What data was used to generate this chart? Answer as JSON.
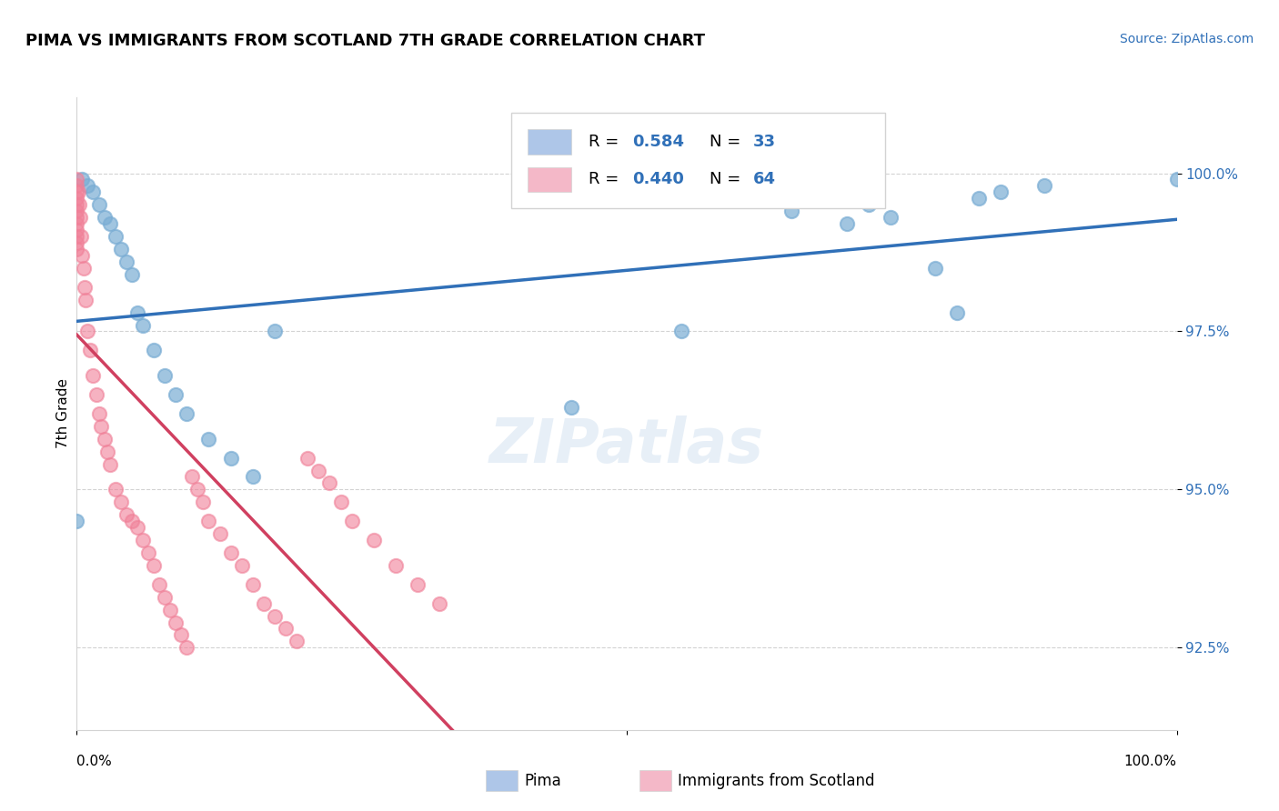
{
  "title": "PIMA VS IMMIGRANTS FROM SCOTLAND 7TH GRADE CORRELATION CHART",
  "source_text": "Source: ZipAtlas.com",
  "ylabel": "7th Grade",
  "y_ticks": [
    92.5,
    95.0,
    97.5,
    100.0
  ],
  "y_tick_labels": [
    "92.5%",
    "95.0%",
    "97.5%",
    "100.0%"
  ],
  "x_lim": [
    0.0,
    1.0
  ],
  "y_lim": [
    91.2,
    101.2
  ],
  "blue_color": "#7aadd4",
  "pink_color": "#f08098",
  "blue_line_color": "#3070b8",
  "pink_line_color": "#d04060",
  "legend_blue_fill": "#aec6e8",
  "legend_pink_fill": "#f4b8c8",
  "r_blue": "0.584",
  "n_blue": "33",
  "r_pink": "0.440",
  "n_pink": "64",
  "pima_x": [
    0.0,
    0.005,
    0.01,
    0.015,
    0.02,
    0.025,
    0.03,
    0.035,
    0.04,
    0.045,
    0.05,
    0.055,
    0.06,
    0.07,
    0.08,
    0.09,
    0.1,
    0.12,
    0.14,
    0.16,
    0.18,
    0.45,
    0.55,
    0.65,
    0.7,
    0.72,
    0.74,
    0.78,
    0.8,
    0.82,
    0.84,
    0.88,
    1.0
  ],
  "pima_y": [
    94.5,
    99.9,
    99.8,
    99.7,
    99.5,
    99.3,
    99.2,
    99.0,
    98.8,
    98.6,
    98.4,
    97.8,
    97.6,
    97.2,
    96.8,
    96.5,
    96.2,
    95.8,
    95.5,
    95.2,
    97.5,
    96.3,
    97.5,
    99.4,
    99.2,
    99.5,
    99.3,
    98.5,
    97.8,
    99.6,
    99.7,
    99.8,
    99.9
  ],
  "scot_x": [
    0.0,
    0.0,
    0.0,
    0.0,
    0.0,
    0.0,
    0.0,
    0.0,
    0.0,
    0.0,
    0.0,
    0.0,
    0.001,
    0.002,
    0.003,
    0.004,
    0.005,
    0.006,
    0.007,
    0.008,
    0.01,
    0.012,
    0.015,
    0.018,
    0.02,
    0.022,
    0.025,
    0.028,
    0.03,
    0.035,
    0.04,
    0.045,
    0.05,
    0.055,
    0.06,
    0.065,
    0.07,
    0.075,
    0.08,
    0.085,
    0.09,
    0.095,
    0.1,
    0.105,
    0.11,
    0.115,
    0.12,
    0.13,
    0.14,
    0.15,
    0.16,
    0.17,
    0.18,
    0.19,
    0.2,
    0.21,
    0.22,
    0.23,
    0.24,
    0.25,
    0.27,
    0.29,
    0.31,
    0.33
  ],
  "scot_y": [
    99.9,
    99.8,
    99.7,
    99.6,
    99.5,
    99.4,
    99.3,
    99.2,
    99.1,
    99.0,
    98.9,
    98.8,
    99.7,
    99.5,
    99.3,
    99.0,
    98.7,
    98.5,
    98.2,
    98.0,
    97.5,
    97.2,
    96.8,
    96.5,
    96.2,
    96.0,
    95.8,
    95.6,
    95.4,
    95.0,
    94.8,
    94.6,
    94.5,
    94.4,
    94.2,
    94.0,
    93.8,
    93.5,
    93.3,
    93.1,
    92.9,
    92.7,
    92.5,
    95.2,
    95.0,
    94.8,
    94.5,
    94.3,
    94.0,
    93.8,
    93.5,
    93.2,
    93.0,
    92.8,
    92.6,
    95.5,
    95.3,
    95.1,
    94.8,
    94.5,
    94.2,
    93.8,
    93.5,
    93.2
  ]
}
